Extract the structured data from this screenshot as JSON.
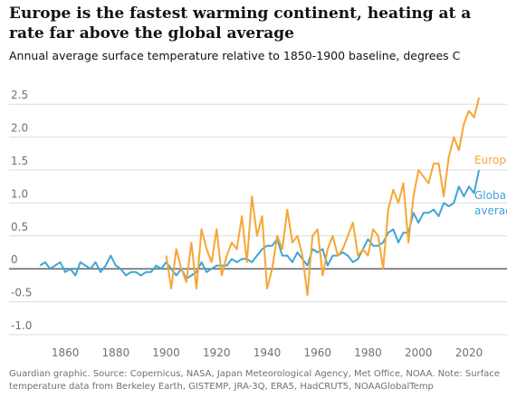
{
  "chart_data": {
    "type": "line",
    "title": "Europe is the fastest warming continent, heating at a rate far above the global average",
    "subtitle": "Annual average surface temperature relative to 1850-1900 baseline, degrees C",
    "source": "Guardian graphic. Source: Copernicus, NASA, Japan Meteorological Agency, Met Office, NOAA. Note: Surface temperature data from Berkeley Earth, GISTEMP, JRA-3Q, ERA5, HadCRUT5, NOAAGlobalTemp",
    "xlim": [
      1837,
      2034
    ],
    "xticks": [
      1860,
      1880,
      1900,
      1920,
      1940,
      1960,
      1980,
      2000,
      2020
    ],
    "ylim": [
      -1.0,
      2.75
    ],
    "yticks": [
      {
        "value": -1.0,
        "label": "-1.0"
      },
      -0.5,
      0,
      0.5,
      {
        "value": 1.0,
        "label": "1.0"
      },
      1.5,
      {
        "value": 2.0,
        "label": "2.0"
      },
      2.5
    ],
    "grid": true,
    "series": [
      {
        "name": "Global average",
        "color": "#3fa5d6",
        "x": [
          1850,
          1852,
          1854,
          1856,
          1858,
          1860,
          1862,
          1864,
          1866,
          1868,
          1870,
          1872,
          1874,
          1876,
          1878,
          1880,
          1882,
          1884,
          1886,
          1888,
          1890,
          1892,
          1894,
          1896,
          1898,
          1900,
          1902,
          1904,
          1906,
          1908,
          1910,
          1912,
          1914,
          1916,
          1918,
          1920,
          1922,
          1924,
          1926,
          1928,
          1930,
          1932,
          1934,
          1936,
          1938,
          1940,
          1942,
          1944,
          1946,
          1948,
          1950,
          1952,
          1954,
          1956,
          1958,
          1960,
          1962,
          1964,
          1966,
          1968,
          1970,
          1972,
          1974,
          1976,
          1978,
          1980,
          1982,
          1984,
          1986,
          1988,
          1990,
          1992,
          1994,
          1996,
          1998,
          2000,
          2002,
          2004,
          2006,
          2008,
          2010,
          2012,
          2014,
          2016,
          2018,
          2020,
          2022,
          2024
        ],
        "values": [
          0.05,
          0.1,
          0.0,
          0.05,
          0.1,
          -0.05,
          0.0,
          -0.1,
          0.1,
          0.05,
          0.0,
          0.1,
          -0.05,
          0.05,
          0.2,
          0.05,
          0.0,
          -0.1,
          -0.05,
          -0.05,
          -0.1,
          -0.05,
          -0.05,
          0.05,
          0.0,
          0.1,
          0.0,
          -0.1,
          0.0,
          -0.15,
          -0.1,
          -0.05,
          0.1,
          -0.05,
          0.0,
          0.05,
          0.05,
          0.05,
          0.15,
          0.1,
          0.15,
          0.15,
          0.1,
          0.2,
          0.3,
          0.35,
          0.35,
          0.45,
          0.2,
          0.2,
          0.1,
          0.25,
          0.15,
          0.05,
          0.3,
          0.25,
          0.3,
          0.05,
          0.2,
          0.2,
          0.25,
          0.2,
          0.1,
          0.15,
          0.3,
          0.45,
          0.35,
          0.35,
          0.4,
          0.55,
          0.6,
          0.4,
          0.55,
          0.55,
          0.85,
          0.7,
          0.85,
          0.85,
          0.9,
          0.8,
          1.0,
          0.95,
          1.0,
          1.25,
          1.1,
          1.25,
          1.15,
          1.5
        ]
      },
      {
        "name": "Europe",
        "color": "#f5a733",
        "x": [
          1900,
          1902,
          1904,
          1906,
          1908,
          1910,
          1912,
          1914,
          1916,
          1918,
          1920,
          1922,
          1924,
          1926,
          1928,
          1930,
          1932,
          1934,
          1936,
          1938,
          1940,
          1942,
          1944,
          1946,
          1948,
          1950,
          1952,
          1954,
          1956,
          1958,
          1960,
          1962,
          1964,
          1966,
          1968,
          1970,
          1972,
          1974,
          1976,
          1978,
          1980,
          1982,
          1984,
          1986,
          1988,
          1990,
          1992,
          1994,
          1996,
          1998,
          2000,
          2002,
          2004,
          2006,
          2008,
          2010,
          2012,
          2014,
          2016,
          2018,
          2020,
          2022,
          2024
        ],
        "values": [
          0.2,
          -0.3,
          0.3,
          0.0,
          -0.2,
          0.4,
          -0.3,
          0.6,
          0.3,
          0.1,
          0.6,
          -0.1,
          0.2,
          0.4,
          0.3,
          0.8,
          0.1,
          1.1,
          0.5,
          0.8,
          -0.3,
          0.0,
          0.5,
          0.3,
          0.9,
          0.4,
          0.5,
          0.2,
          -0.4,
          0.5,
          0.6,
          -0.1,
          0.3,
          0.5,
          0.2,
          0.3,
          0.5,
          0.7,
          0.2,
          0.3,
          0.2,
          0.6,
          0.5,
          0.0,
          0.9,
          1.2,
          1.0,
          1.3,
          0.4,
          1.1,
          1.5,
          1.4,
          1.3,
          1.6,
          1.6,
          1.1,
          1.7,
          2.0,
          1.8,
          2.2,
          2.4,
          2.3,
          2.6
        ]
      }
    ]
  }
}
